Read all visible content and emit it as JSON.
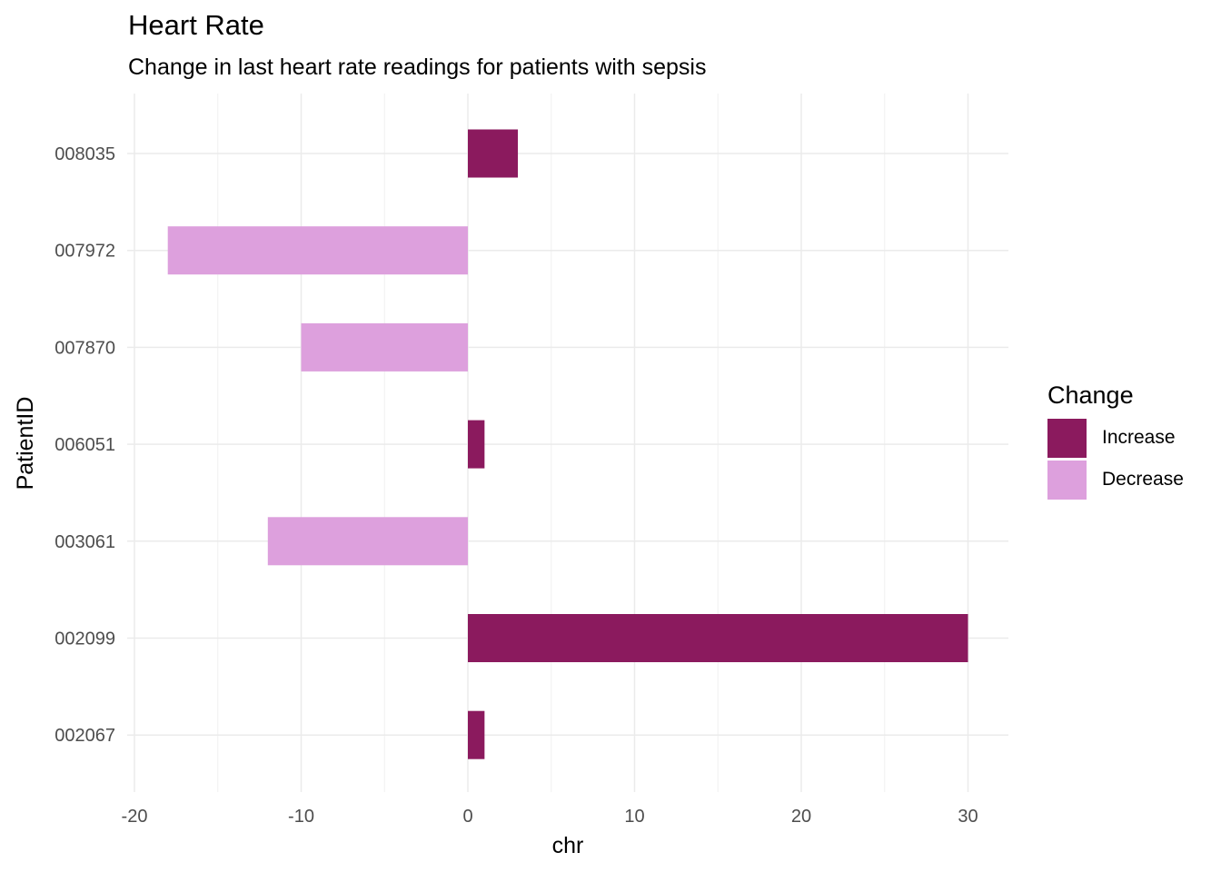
{
  "chart_data": {
    "type": "bar",
    "orientation": "horizontal",
    "title": "Heart Rate",
    "subtitle": "Change in last heart rate readings for patients with sepsis",
    "xlabel": "chr",
    "ylabel": "PatientID",
    "xlim": [
      -20,
      32.5
    ],
    "xticks": [
      -20,
      -10,
      0,
      10,
      20,
      30
    ],
    "xtick_labels": [
      "-20",
      "-10",
      "0",
      "10",
      "20",
      "30"
    ],
    "categories": [
      "002067",
      "002099",
      "003061",
      "006051",
      "007870",
      "007972",
      "008035"
    ],
    "values": [
      1,
      30,
      -12,
      1,
      -10,
      -18,
      3
    ],
    "change": [
      "Increase",
      "Increase",
      "Decrease",
      "Increase",
      "Decrease",
      "Decrease",
      "Increase"
    ],
    "grid": true,
    "legend": {
      "title": "Change",
      "position": "right",
      "entries": [
        {
          "label": "Increase",
          "color": "#8B1A5E"
        },
        {
          "label": "Decrease",
          "color": "#DDA0DD"
        }
      ]
    }
  }
}
